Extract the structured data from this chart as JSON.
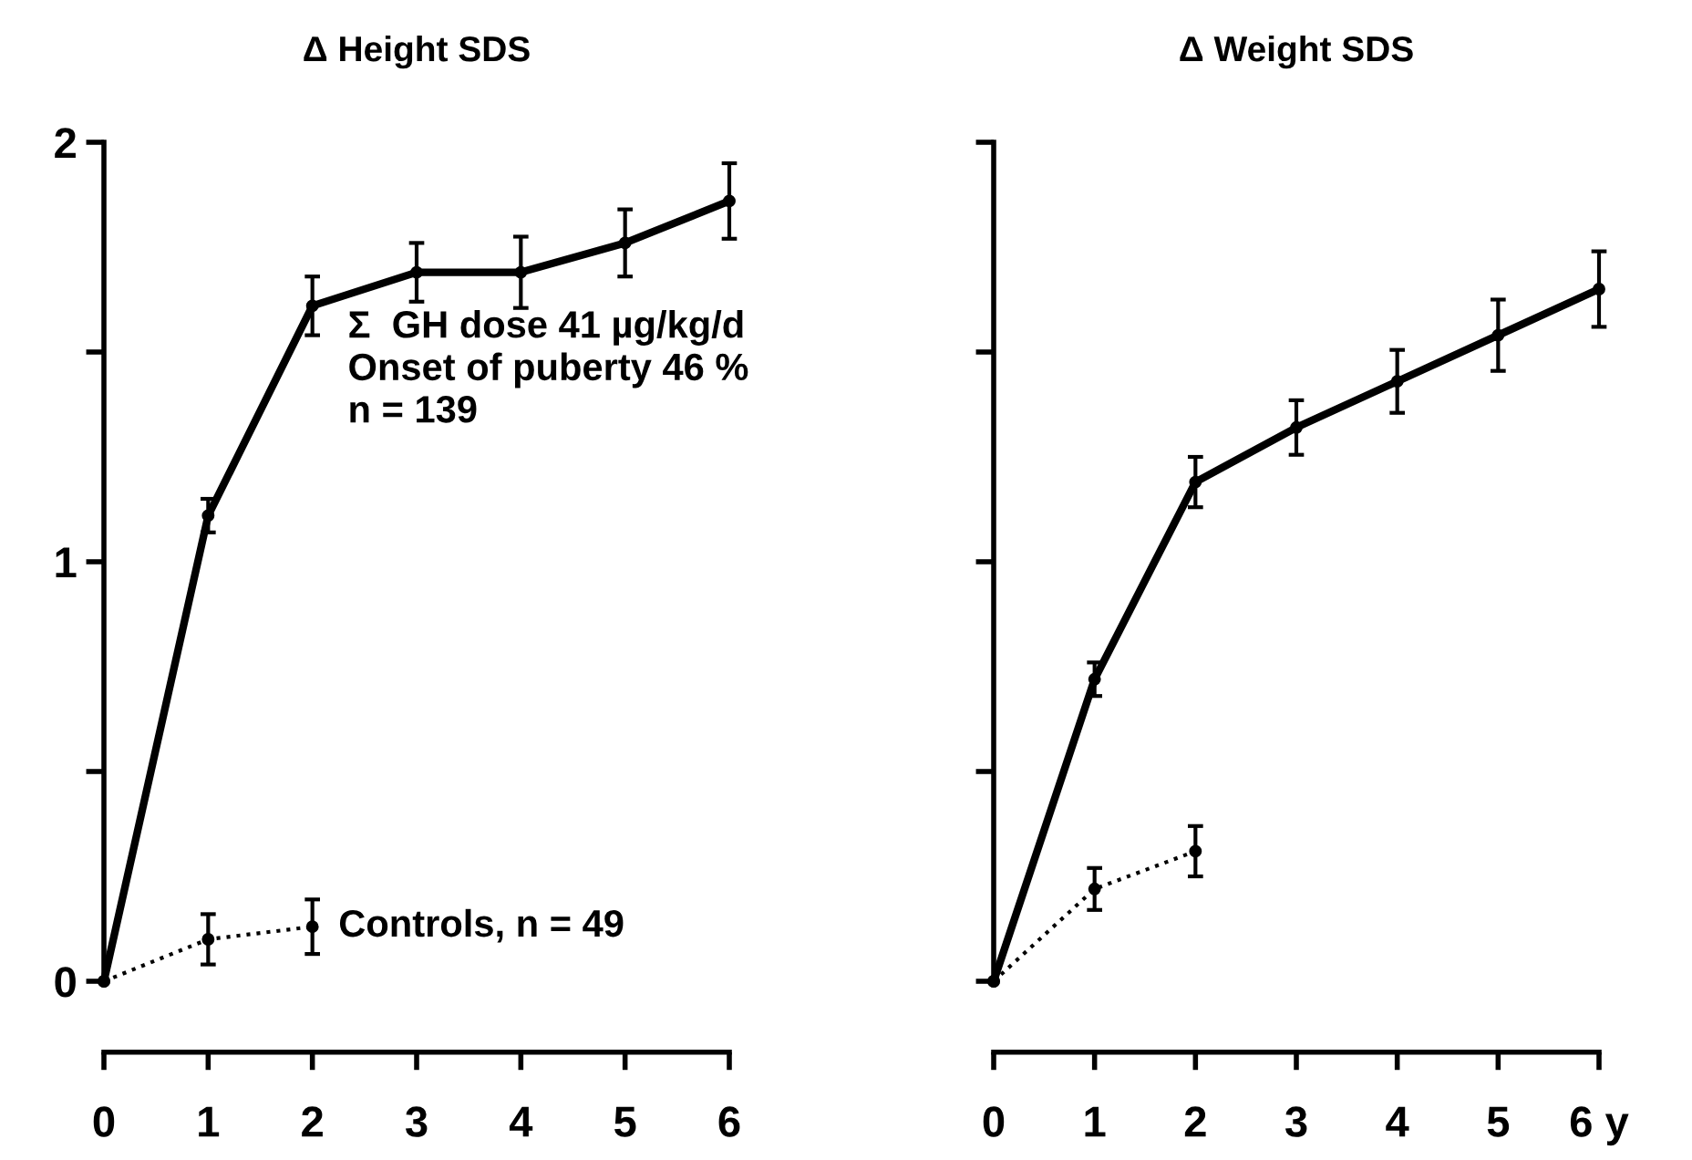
{
  "chart_data": [
    {
      "type": "line",
      "title": "Δ Height SDS",
      "x": [
        0,
        1,
        2,
        3,
        4,
        5,
        6
      ],
      "xlim": [
        0,
        6
      ],
      "xticks": [
        0,
        1,
        2,
        3,
        4,
        5,
        6
      ],
      "ylim": [
        0,
        2
      ],
      "yticks": [
        0,
        {
          "value": 0.5,
          "label": null
        },
        1,
        {
          "value": 1.5,
          "label": null
        },
        2
      ],
      "marker": "circle",
      "grid": false,
      "legend": false,
      "series": [
        {
          "color": "#000000",
          "line_style": "solid",
          "values": [
            0,
            1.11,
            1.61,
            1.69,
            1.69,
            1.76,
            1.86
          ],
          "errors": [
            null,
            0.04,
            0.07,
            0.07,
            0.085,
            0.08,
            0.09
          ]
        },
        {
          "name": "Controls, n = 49",
          "color": "#000000",
          "line_style": "dotted",
          "x": [
            0,
            1,
            2
          ],
          "values": [
            0,
            0.1,
            0.13
          ],
          "errors": [
            null,
            0.06,
            0.065
          ]
        }
      ],
      "annotations": [
        "Σ  GH dose 41 µg/kg/d\nOnset of puberty 46 %\nn = 139"
      ]
    },
    {
      "type": "line",
      "title": "Δ Weight SDS",
      "x": [
        0,
        1,
        2,
        3,
        4,
        5,
        6
      ],
      "xlim": [
        0,
        6
      ],
      "xticks": [
        0,
        1,
        2,
        3,
        4,
        5,
        {
          "value": 6,
          "label": "6 y"
        }
      ],
      "ylim": [
        0,
        2
      ],
      "yticks": [
        0,
        0.5,
        1,
        1.5,
        2
      ],
      "tick_labels": "x",
      "marker": "circle",
      "grid": false,
      "legend": false,
      "series": [
        {
          "color": "#000000",
          "line_style": "solid",
          "values": [
            0,
            0.72,
            1.19,
            1.32,
            1.43,
            1.54,
            1.65
          ],
          "errors": [
            null,
            0.04,
            0.06,
            0.065,
            0.075,
            0.085,
            0.09
          ]
        },
        {
          "color": "#000000",
          "line_style": "dotted",
          "x": [
            0,
            1,
            2
          ],
          "values": [
            0,
            0.22,
            0.31
          ],
          "errors": [
            null,
            0.05,
            0.06
          ]
        }
      ]
    }
  ]
}
